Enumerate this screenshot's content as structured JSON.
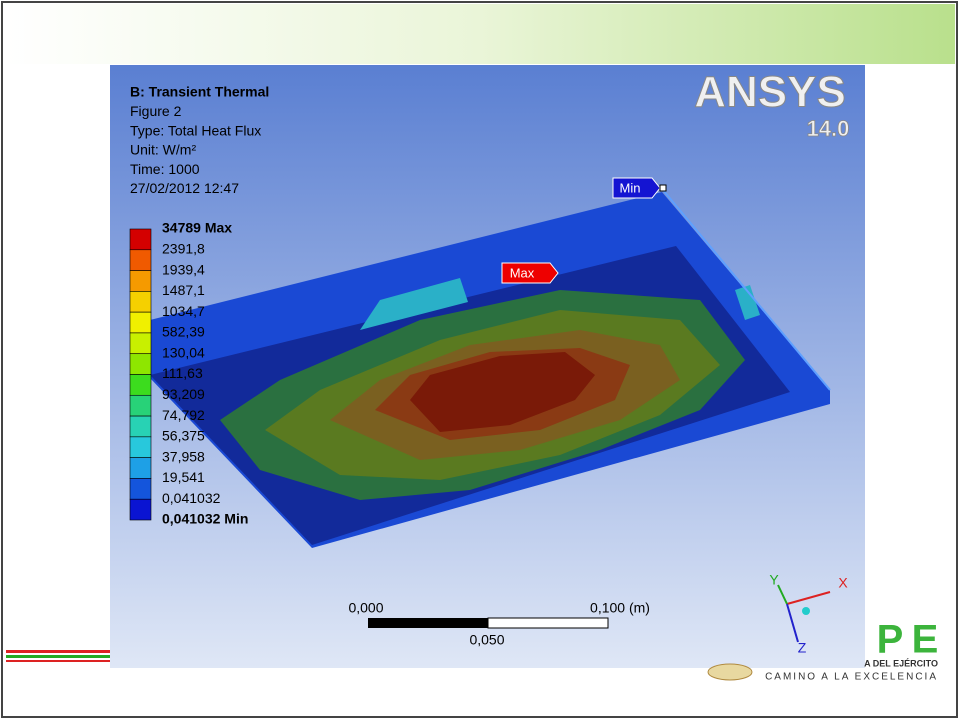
{
  "header": {
    "lines": [
      "B: Transient Thermal",
      "Figure 2",
      "Type: Total Heat Flux",
      "Unit: W/m²",
      "Time: 1000",
      "27/02/2012 12:47"
    ]
  },
  "logo": {
    "brand": "ANSYS",
    "version": "14.0"
  },
  "legend": {
    "max_label": "34789 Max",
    "labels": [
      "2391,8",
      "1939,4",
      "1487,1",
      "1034,7",
      "582,39",
      "130,04",
      "111,63",
      "93,209",
      "74,792",
      "56,375",
      "37,958",
      "19,541",
      "0,041032"
    ],
    "min_label": "0,041032 Min",
    "colors": [
      "#d40000",
      "#f05a00",
      "#f59a00",
      "#f5d000",
      "#f0f000",
      "#c8f000",
      "#8ee600",
      "#3cdc1e",
      "#28d278",
      "#28d2b4",
      "#28c8dc",
      "#1ea0e6",
      "#1455dc",
      "#0a14d2"
    ]
  },
  "probes": {
    "max": "Max",
    "min": "Min"
  },
  "scale_bar": {
    "start": "0,000",
    "end": "0,100 (m)",
    "mid": "0,050"
  },
  "triad": {
    "x": "X",
    "y": "Y",
    "z": "Z"
  },
  "footer": {
    "letter_1": "P",
    "letter_2": "E",
    "line_1": "A DEL EJÉRCITO",
    "line_2": "CAMINO A LA EXCELENCIA"
  }
}
